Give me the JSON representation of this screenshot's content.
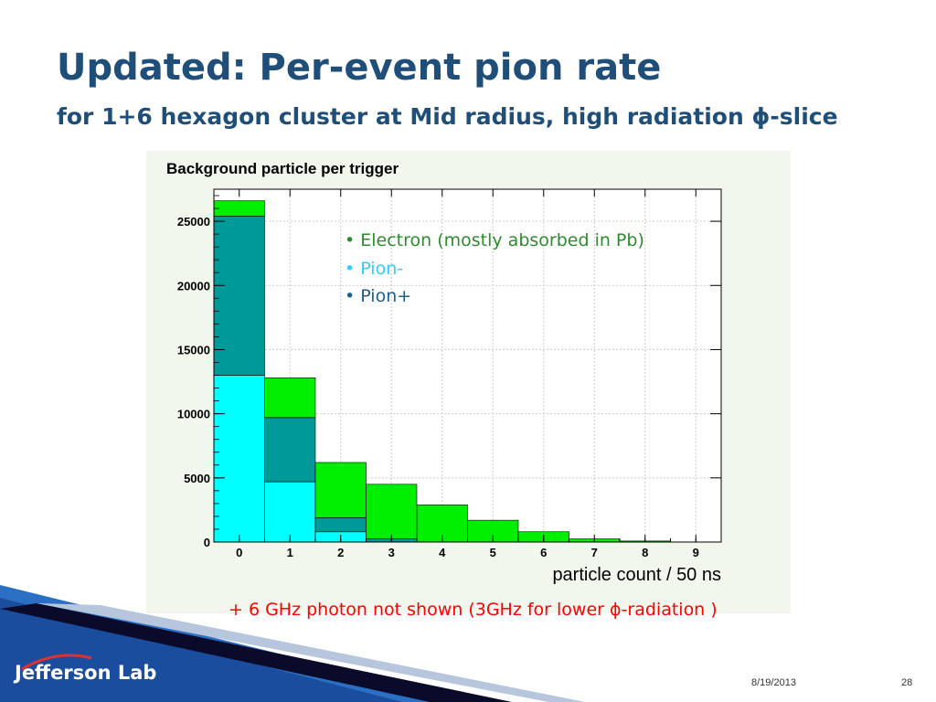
{
  "slide": {
    "title": "Updated: Per-event pion rate",
    "subtitle": "for 1+6 hexagon cluster at Mid radius, high radiation ϕ-slice",
    "footnote": "+ 6 GHz photon not shown (3GHz for lower ϕ-radiation )",
    "date": "8/19/2013",
    "page_number": "28",
    "logo_text": "Jefferson Lab"
  },
  "legend": [
    {
      "label": "Electron (mostly absorbed in Pb)",
      "color": "#2e8b2e"
    },
    {
      "label": "Pion-",
      "color": "#33ccff"
    },
    {
      "label": "Pion+",
      "color": "#1f5f8f"
    }
  ],
  "colors": {
    "electron": "#00ee00",
    "pion_plus": "#009999",
    "pion_minus": "#00ffff",
    "title": "#1f4e79",
    "footnote": "#ff0000"
  },
  "chart_data": {
    "type": "bar",
    "stacked": true,
    "title": "Background particle per trigger",
    "xlabel": "particle count / 50 ns",
    "ylabel": "",
    "x": [
      0,
      1,
      2,
      3,
      4,
      5,
      6,
      7,
      8,
      9
    ],
    "xlim": [
      -0.5,
      9.5
    ],
    "ylim": [
      0,
      27500
    ],
    "yticks": [
      0,
      5000,
      10000,
      15000,
      20000,
      25000
    ],
    "series": [
      {
        "name": "Pion-",
        "values": [
          13000,
          4700,
          800,
          0,
          0,
          0,
          0,
          0,
          0,
          0
        ]
      },
      {
        "name": "Pion+",
        "values": [
          12400,
          5000,
          1100,
          250,
          0,
          0,
          0,
          0,
          0,
          0
        ]
      },
      {
        "name": "Electron (mostly absorbed in Pb)",
        "values": [
          1200,
          3100,
          4300,
          4250,
          2900,
          1700,
          800,
          250,
          80,
          0
        ]
      }
    ],
    "grid": true
  }
}
